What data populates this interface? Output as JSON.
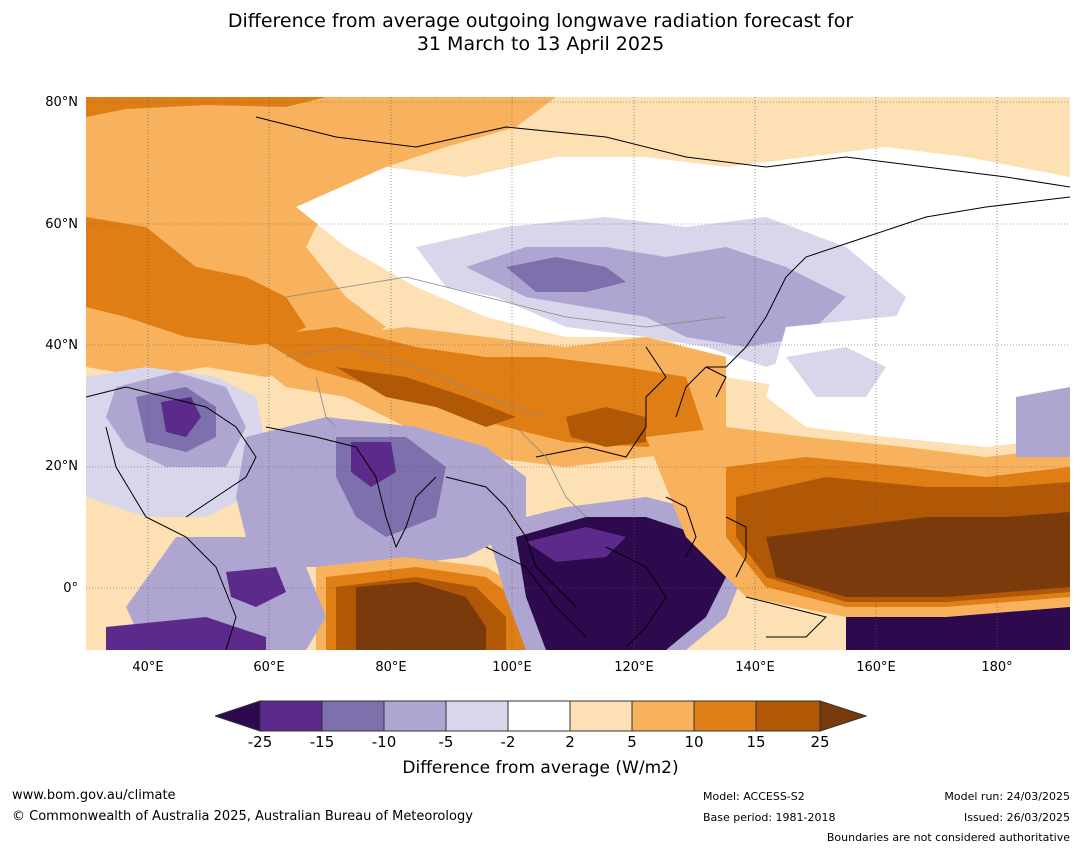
{
  "title": {
    "line1": "Difference from average outgoing longwave radiation forecast for",
    "line2": "31 March to 13 April 2025"
  },
  "map": {
    "region": "Asia / Indian Ocean / Maritime Continent",
    "lat_labels": [
      "80°N",
      "60°N",
      "40°N",
      "20°N",
      "0°"
    ],
    "lon_labels": [
      "40°E",
      "60°E",
      "80°E",
      "100°E",
      "120°E",
      "140°E",
      "160°E",
      "180°"
    ],
    "graticule": "dotted",
    "colors": {
      "le_-25": "#2d0a4e",
      "-25_-15": "#5b2a8a",
      "-15_-10": "#7e6fad",
      "-10_-5": "#aea6d0",
      "-5_-2": "#d8d6ea",
      "-2_2": "#ffffff",
      "2_5": "#fde0b3",
      "5_10": "#f8b15c",
      "10_15": "#e07e16",
      "15_25": "#b05806",
      "ge_25": "#7a3a0c"
    }
  },
  "colorbar": {
    "ticks": [
      "-25",
      "-15",
      "-10",
      "-5",
      "-2",
      "2",
      "5",
      "10",
      "15",
      "25"
    ],
    "label": "Difference from average (W/m2)"
  },
  "footer": {
    "website": "www.bom.gov.au/climate",
    "copyright": "© Commonwealth of Australia 2025, Australian Bureau of Meteorology",
    "model": "Model: ACCESS-S2",
    "base_period": "Base period: 1981-2018",
    "model_run": "Model run: 24/03/2025",
    "issued": "Issued: 26/03/2025",
    "disclaimer": "Boundaries are not considered authoritative"
  }
}
